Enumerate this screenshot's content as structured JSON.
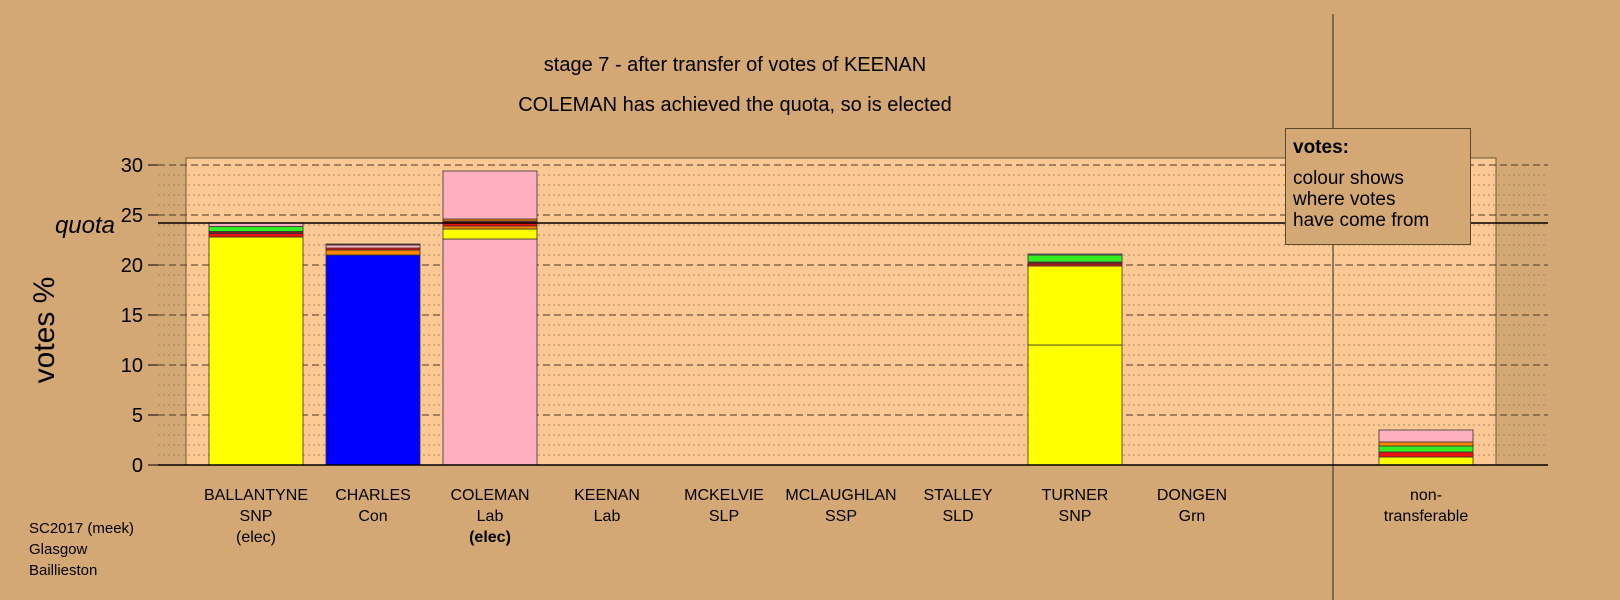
{
  "title": "stage 7 - after transfer of votes of KEENAN",
  "subtitle": "COLEMAN has achieved the quota, so is elected",
  "source": [
    "SC2017 (meek)",
    "Glasgow",
    "Baillieston"
  ],
  "legend": {
    "heading": "votes:",
    "body": [
      "colour shows",
      "where votes",
      "have come from"
    ]
  },
  "colors": {
    "background": "#d4a874",
    "plot_area": "#fcc893",
    "SNP": "#ffff00",
    "Con": "#0000ff",
    "Lab": "#ffb0c0",
    "Grn": "#33ee22",
    "SLD": "#ff8800",
    "SSP": "#ee1111",
    "SLP": "#882222"
  },
  "chart_data": {
    "type": "bar",
    "stacked": true,
    "ylabel": "votes %",
    "ylim": [
      0,
      30
    ],
    "yticks": [
      0,
      5,
      10,
      15,
      20,
      25,
      30
    ],
    "quota": {
      "label": "quota",
      "value": 24.2
    },
    "grid": true,
    "candidates": [
      {
        "name": "BALLANTYNE",
        "party": "SNP",
        "status": "(elec)",
        "status_bold": false,
        "segments": [
          {
            "from": "SNP",
            "value": 22.8
          },
          {
            "from": "SSP",
            "value": 0.35
          },
          {
            "from": "SLP",
            "value": 0.2
          },
          {
            "from": "Grn",
            "value": 0.5
          },
          {
            "from": "Lab",
            "value": 0.35
          }
        ]
      },
      {
        "name": "CHARLES",
        "party": "Con",
        "status": "",
        "status_bold": false,
        "segments": [
          {
            "from": "Con",
            "value": 21.0
          },
          {
            "from": "SLD",
            "value": 0.5
          },
          {
            "from": "SSP",
            "value": 0.2
          },
          {
            "from": "Lab",
            "value": 0.3
          },
          {
            "from": "SLP",
            "value": 0.1
          }
        ]
      },
      {
        "name": "COLEMAN",
        "party": "Lab",
        "status": "(elec)",
        "status_bold": true,
        "segments": [
          {
            "from": "Lab",
            "value": 22.6
          },
          {
            "from": "SNP",
            "value": 1.0
          },
          {
            "from": "SLD",
            "value": 0.3
          },
          {
            "from": "SSP",
            "value": 0.3
          },
          {
            "from": "SLP",
            "value": 0.2
          },
          {
            "from": "SLD",
            "value": 0.2
          },
          {
            "from": "Lab",
            "value": 4.8
          }
        ]
      },
      {
        "name": "KEENAN",
        "party": "Lab",
        "status": "",
        "status_bold": false,
        "segments": []
      },
      {
        "name": "MCKELVIE",
        "party": "SLP",
        "status": "",
        "status_bold": false,
        "segments": []
      },
      {
        "name": "MCLAUGHLAN",
        "party": "SSP",
        "status": "",
        "status_bold": false,
        "segments": []
      },
      {
        "name": "STALLEY",
        "party": "SLD",
        "status": "",
        "status_bold": false,
        "segments": []
      },
      {
        "name": "TURNER",
        "party": "SNP",
        "status": "",
        "status_bold": false,
        "segments": [
          {
            "from": "SNP",
            "value": 12.0
          },
          {
            "from": "SNP",
            "value": 7.9
          },
          {
            "from": "SSP",
            "value": 0.2
          },
          {
            "from": "SLP",
            "value": 0.2
          },
          {
            "from": "Grn",
            "value": 0.7
          },
          {
            "from": "Lab",
            "value": 0.1
          }
        ]
      },
      {
        "name": "DONGEN",
        "party": "Grn",
        "status": "",
        "status_bold": false,
        "segments": []
      },
      {
        "name": "non-",
        "party": "transferable",
        "status": "",
        "status_bold": false,
        "segments": [
          {
            "from": "SNP",
            "value": 0.8
          },
          {
            "from": "SSP",
            "value": 0.5
          },
          {
            "from": "Grn",
            "value": 0.6
          },
          {
            "from": "SLD",
            "value": 0.4
          },
          {
            "from": "Lab",
            "value": 1.2
          }
        ]
      }
    ]
  }
}
